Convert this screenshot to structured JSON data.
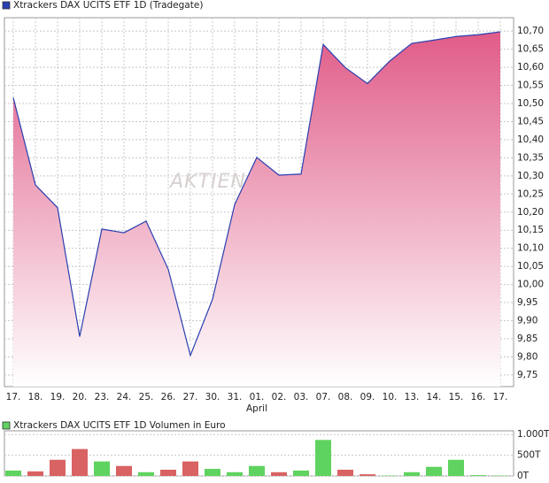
{
  "chart_data": [
    {
      "type": "area",
      "watermark": "AKTIEN",
      "categories": [
        "17.",
        "18.",
        "19.",
        "20.",
        "23.",
        "24.",
        "25.",
        "26.",
        "27.",
        "30.",
        "31.",
        "01.",
        "02.",
        "03.",
        "07.",
        "08.",
        "09.",
        "10.",
        "13.",
        "14.",
        "15.",
        "16.",
        "17."
      ],
      "month_label": "April",
      "series": [
        {
          "name": "Xtrackers DAX UCITS ETF 1D (Tradegate)",
          "color": "#2a3fb0",
          "values": [
            10.516,
            10.275,
            10.212,
            9.856,
            10.153,
            10.143,
            10.175,
            10.042,
            9.804,
            9.959,
            10.221,
            10.351,
            10.302,
            10.305,
            10.663,
            10.599,
            10.555,
            10.617,
            10.666,
            10.675,
            10.685,
            10.69,
            10.698
          ]
        }
      ],
      "fill_color": "#e05c88",
      "ylim": [
        9.718,
        10.737
      ],
      "yticks": [
        {
          "value": 9.75,
          "label": "9,75"
        },
        {
          "value": 9.8,
          "label": "9,80"
        },
        {
          "value": 9.85,
          "label": "9,85"
        },
        {
          "value": 9.9,
          "label": "9,90"
        },
        {
          "value": 9.95,
          "label": "9,95"
        },
        {
          "value": 10.0,
          "label": "10,00"
        },
        {
          "value": 10.05,
          "label": "10,05"
        },
        {
          "value": 10.1,
          "label": "10,10"
        },
        {
          "value": 10.15,
          "label": "10,15"
        },
        {
          "value": 10.2,
          "label": "10,20"
        },
        {
          "value": 10.25,
          "label": "10,25"
        },
        {
          "value": 10.3,
          "label": "10,30"
        },
        {
          "value": 10.35,
          "label": "10,35"
        },
        {
          "value": 10.4,
          "label": "10,40"
        },
        {
          "value": 10.45,
          "label": "10,45"
        },
        {
          "value": 10.5,
          "label": "10,50"
        },
        {
          "value": 10.55,
          "label": "10,55"
        },
        {
          "value": 10.6,
          "label": "10,60"
        },
        {
          "value": 10.65,
          "label": "10,65"
        },
        {
          "value": 10.7,
          "label": "10,70"
        }
      ],
      "grid": true
    },
    {
      "type": "bar",
      "series": [
        {
          "name": "Xtrackers DAX UCITS ETF 1D Volumen in Euro",
          "color": "#5fd35f",
          "values": [
            130,
            110,
            390,
            650,
            350,
            240,
            90,
            150,
            350,
            170,
            90,
            240,
            90,
            130,
            870,
            150,
            40,
            10,
            90,
            220,
            390,
            20,
            10
          ],
          "colors": [
            "#5fd35f",
            "#d96262",
            "#d96262",
            "#d96262",
            "#5fd35f",
            "#d96262",
            "#5fd35f",
            "#d96262",
            "#d96262",
            "#5fd35f",
            "#5fd35f",
            "#5fd35f",
            "#d96262",
            "#5fd35f",
            "#5fd35f",
            "#d96262",
            "#d96262",
            "#5fd35f",
            "#5fd35f",
            "#5fd35f",
            "#5fd35f",
            "#5fd35f",
            "#5fd35f"
          ]
        }
      ],
      "ylim": [
        0,
        1090
      ],
      "yticks": [
        {
          "value": 0,
          "label": "0T"
        },
        {
          "value": 500,
          "label": "500T"
        },
        {
          "value": 1000,
          "label": "1.000T"
        }
      ],
      "grid": true
    }
  ]
}
